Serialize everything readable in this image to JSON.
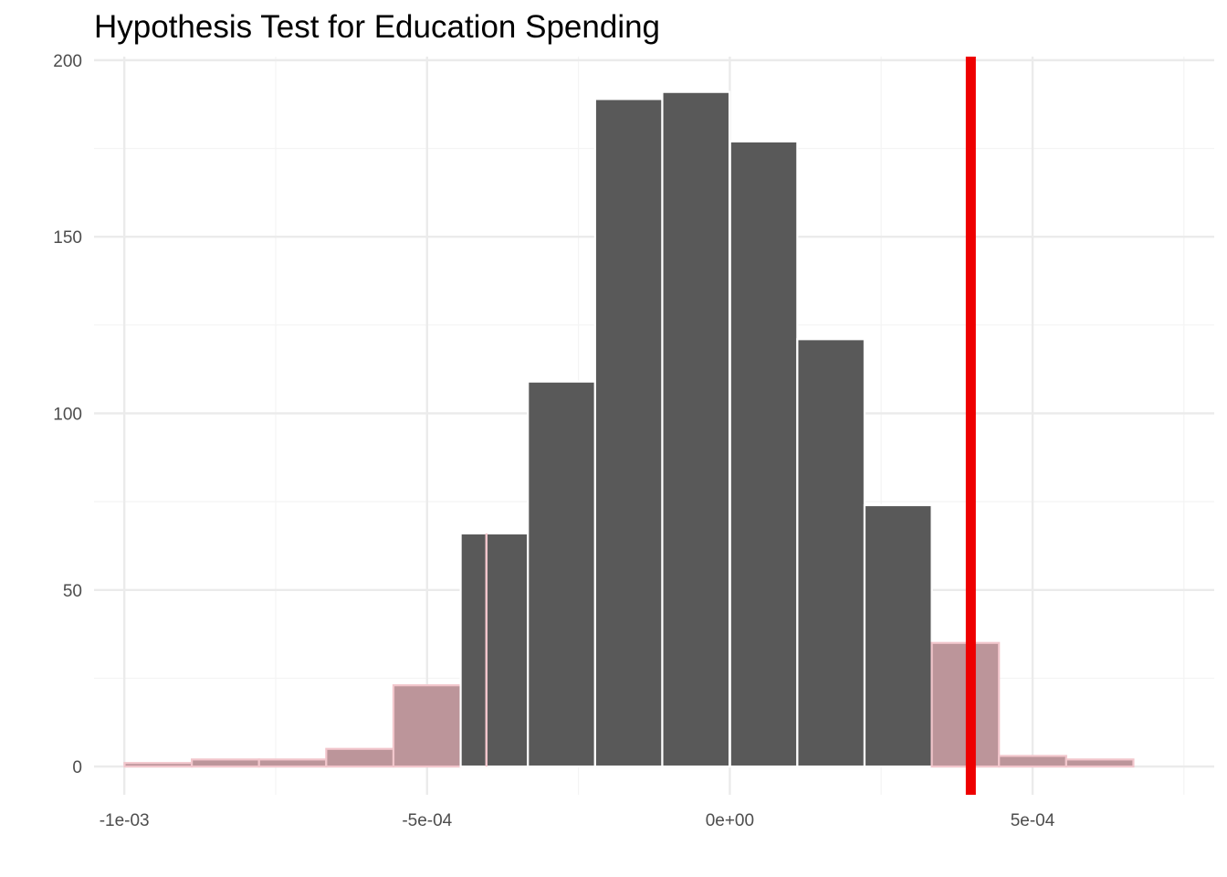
{
  "chart_data": {
    "type": "bar",
    "title": "Hypothesis Test for Education Spending",
    "xlabel": "",
    "ylabel": "",
    "xlim": [
      -0.00105,
      0.0008
    ],
    "ylim": [
      -8,
      201
    ],
    "x_ticks": [
      {
        "value": -0.001,
        "label": "-1e-03"
      },
      {
        "value": -0.0005,
        "label": "-5e-04"
      },
      {
        "value": 0.0,
        "label": "0e+00"
      },
      {
        "value": 0.0005,
        "label": "5e-04"
      }
    ],
    "y_ticks": [
      {
        "value": 0,
        "label": "0"
      },
      {
        "value": 50,
        "label": "50"
      },
      {
        "value": 100,
        "label": "100"
      },
      {
        "value": 150,
        "label": "150"
      },
      {
        "value": 200,
        "label": "200"
      }
    ],
    "bin_width": 0.000111,
    "bins": [
      {
        "center": -0.000944,
        "count": 1,
        "shaded": true
      },
      {
        "center": -0.000833,
        "count": 2,
        "shaded": true
      },
      {
        "center": -0.000722,
        "count": 2,
        "shaded": true
      },
      {
        "center": -0.000611,
        "count": 5,
        "shaded": true
      },
      {
        "center": -0.0005,
        "count": 23,
        "shaded": true
      },
      {
        "center": -0.000389,
        "count": 66,
        "shaded": false
      },
      {
        "center": -0.000278,
        "count": 109,
        "shaded": false
      },
      {
        "center": -0.000167,
        "count": 189,
        "shaded": false
      },
      {
        "center": -5.6e-05,
        "count": 191,
        "shaded": false
      },
      {
        "center": 5.6e-05,
        "count": 177,
        "shaded": false
      },
      {
        "center": 0.000167,
        "count": 121,
        "shaded": false
      },
      {
        "center": 0.000278,
        "count": 74,
        "shaded": false
      },
      {
        "center": 0.000389,
        "count": 35,
        "shaded": true
      },
      {
        "center": 0.0005,
        "count": 3,
        "shaded": true
      },
      {
        "center": 0.000611,
        "count": 2,
        "shaded": true
      }
    ],
    "shade_region": {
      "lower": -0.000402,
      "upper": 0.000402
    },
    "observed_stat": 0.000398,
    "colors": {
      "bar_fill": "#595959",
      "shaded_fill": "#bc959a",
      "shade_edge": "#f2c6cc",
      "bar_edge": "#ffffff",
      "observed_line": "#ee0000",
      "grid_major": "#ebebeb",
      "grid_minor": "#f4f4f4"
    },
    "grid": true,
    "legend": "none"
  }
}
